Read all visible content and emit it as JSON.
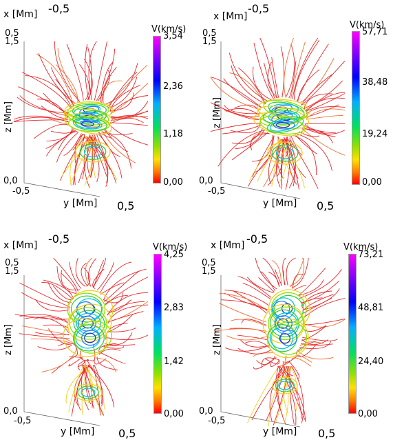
{
  "panels": [
    {
      "colorbar_title": "V(km/s)",
      "colorbar_ticks": [
        "3,54",
        "2,36",
        "1,18",
        "0,00"
      ],
      "x_axis_label": "x [Mm]",
      "x_axis_value": "-0,5",
      "y_axis_label": "y [Mm]",
      "y_axis_min": "-0,5",
      "y_axis_max": "0,5",
      "z_axis_label": "z [Mm]",
      "z_axis_top": "1,5",
      "z_axis_top2": "0,5",
      "z_axis_bottom": "0,0"
    },
    {
      "colorbar_title": "V(km/s)",
      "colorbar_ticks": [
        "57,71",
        "38,48",
        "19,24",
        "0,00"
      ],
      "x_axis_label": "x [Mm]",
      "x_axis_value": "-0,5",
      "y_axis_label": "y [Mm]",
      "y_axis_min": "-0,5",
      "y_axis_max": "0,5",
      "z_axis_label": "z [Mm]",
      "z_axis_top": "1,5",
      "z_axis_top2": "0,5",
      "z_axis_bottom": "0,0"
    },
    {
      "colorbar_title": "V(km/s)",
      "colorbar_ticks": [
        "4,25",
        "2,83",
        "1,42",
        "0,00"
      ],
      "x_axis_label": "x [Mm]",
      "x_axis_value": "-0,5",
      "y_axis_label": "y [Mm]",
      "y_axis_min": "-0,5",
      "y_axis_max": "0,5",
      "z_axis_label": "z [Mm]",
      "z_axis_top": "1,5",
      "z_axis_top2": "0,5",
      "z_axis_bottom": "0,0"
    },
    {
      "colorbar_title": "V(km/s)",
      "colorbar_ticks": [
        "73,21",
        "48,81",
        "24,40",
        "0,00"
      ],
      "x_axis_label": "x [Mm]",
      "x_axis_value": "-0,5",
      "y_axis_label": "y [Mm]",
      "y_axis_min": "-0,5",
      "y_axis_max": "0,5",
      "z_axis_label": "z [Mm]",
      "z_axis_top": "1,5",
      "z_axis_top2": "0,5",
      "z_axis_bottom": "0,0"
    }
  ],
  "colors": {
    "field_line": "#e8262b",
    "core_blue": "#2233cc",
    "core_cyan": "#00c8d8",
    "core_green": "#30d040",
    "core_yellow": "#f0d020"
  }
}
